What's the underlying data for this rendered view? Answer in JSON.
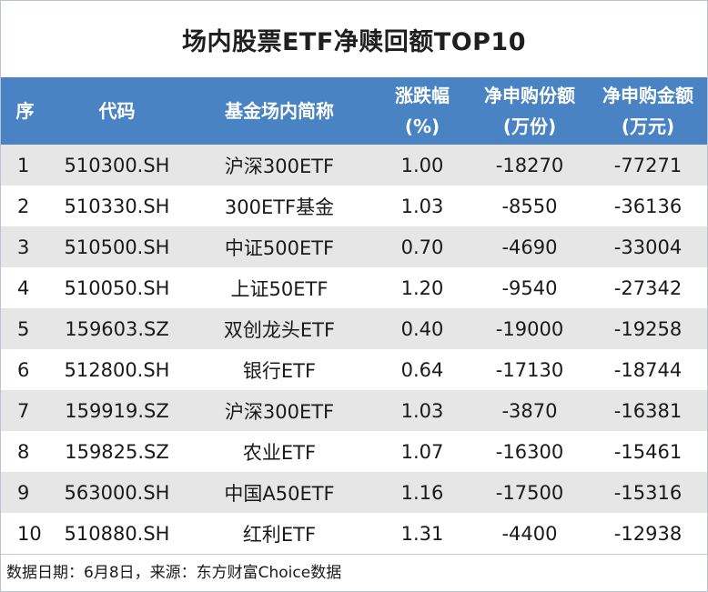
{
  "title": "场内股票ETF净赎回额TOP10",
  "header": {
    "index": "序",
    "code": "代码",
    "name": "基金场内简称",
    "change_line1": "涨跌幅",
    "change_line2": "(%)",
    "net_shares_line1": "净申购份额",
    "net_shares_line2": "(万份)",
    "net_amount_line1": "净申购金额",
    "net_amount_line2": "(万元)"
  },
  "rows": [
    {
      "index": "1",
      "code": "510300.SH",
      "name": "沪深300ETF",
      "change": "1.00",
      "net_shares": "-18270",
      "net_amount": "-77271"
    },
    {
      "index": "2",
      "code": "510330.SH",
      "name": "300ETF基金",
      "change": "1.03",
      "net_shares": "-8550",
      "net_amount": "-36136"
    },
    {
      "index": "3",
      "code": "510500.SH",
      "name": "中证500ETF",
      "change": "0.70",
      "net_shares": "-4690",
      "net_amount": "-33004"
    },
    {
      "index": "4",
      "code": "510050.SH",
      "name": "上证50ETF",
      "change": "1.20",
      "net_shares": "-9540",
      "net_amount": "-27342"
    },
    {
      "index": "5",
      "code": "159603.SZ",
      "name": "双创龙头ETF",
      "change": "0.40",
      "net_shares": "-19000",
      "net_amount": "-19258"
    },
    {
      "index": "6",
      "code": "512800.SH",
      "name": "银行ETF",
      "change": "0.64",
      "net_shares": "-17130",
      "net_amount": "-18744"
    },
    {
      "index": "7",
      "code": "159919.SZ",
      "name": "沪深300ETF",
      "change": "1.03",
      "net_shares": "-3870",
      "net_amount": "-16381"
    },
    {
      "index": "8",
      "code": "159825.SZ",
      "name": "农业ETF",
      "change": "1.07",
      "net_shares": "-16300",
      "net_amount": "-15461"
    },
    {
      "index": "9",
      "code": "563000.SH",
      "name": "中国A50ETF",
      "change": "1.16",
      "net_shares": "-17500",
      "net_amount": "-15316"
    },
    {
      "index": "10",
      "code": "510880.SH",
      "name": "红利ETF",
      "change": "1.31",
      "net_shares": "-4400",
      "net_amount": "-12938"
    }
  ],
  "footer": "数据日期：6月8日，来源：东方财富Choice数据",
  "colors": {
    "header_bg": "#4a83c3",
    "stripe_bg": "#e6e6e6"
  }
}
